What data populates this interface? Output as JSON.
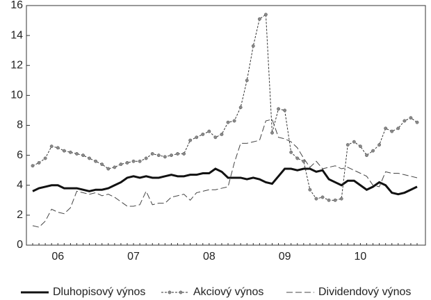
{
  "chart_data": {
    "type": "line",
    "categories": [
      null,
      null,
      null,
      null,
      "06",
      null,
      null,
      null,
      null,
      null,
      null,
      null,
      null,
      null,
      null,
      null,
      "07",
      null,
      null,
      null,
      null,
      null,
      null,
      null,
      null,
      null,
      null,
      null,
      "08",
      null,
      null,
      null,
      null,
      null,
      null,
      null,
      null,
      null,
      null,
      null,
      "09",
      null,
      null,
      null,
      null,
      null,
      null,
      null,
      null,
      null,
      null,
      null,
      "10",
      null,
      null,
      null,
      null,
      null,
      null,
      null,
      null,
      null
    ],
    "ylim": [
      0,
      16
    ],
    "yticks": [
      0,
      2,
      4,
      6,
      8,
      10,
      12,
      14,
      16
    ],
    "grid": false,
    "legend": "bottom",
    "series": [
      {
        "name": "Dluhopisový výnos",
        "color": "#111111",
        "line_style": "thick",
        "values": [
          3.6,
          3.8,
          3.9,
          4.0,
          4.0,
          3.8,
          3.8,
          3.8,
          3.7,
          3.6,
          3.7,
          3.7,
          3.8,
          4.0,
          4.2,
          4.5,
          4.6,
          4.5,
          4.6,
          4.5,
          4.5,
          4.6,
          4.7,
          4.6,
          4.6,
          4.7,
          4.7,
          4.8,
          4.8,
          5.1,
          4.9,
          4.5,
          4.5,
          4.5,
          4.4,
          4.5,
          4.4,
          4.2,
          4.1,
          4.6,
          5.1,
          5.1,
          5.0,
          5.1,
          5.1,
          4.9,
          5.0,
          4.4,
          4.2,
          4.0,
          4.3,
          4.3,
          4.0,
          3.7,
          3.9,
          4.2,
          4.0,
          3.5,
          3.4,
          3.5,
          3.7,
          3.9
        ]
      },
      {
        "name": "Akciový výnos",
        "color": "#333333",
        "line_style": "dotted",
        "marker": "circle",
        "values": [
          5.3,
          5.5,
          5.8,
          6.6,
          6.5,
          6.3,
          6.2,
          6.1,
          6.0,
          5.8,
          5.6,
          5.4,
          5.1,
          5.2,
          5.4,
          5.5,
          5.6,
          5.6,
          5.8,
          6.1,
          6.0,
          5.9,
          6.0,
          6.1,
          6.1,
          7.0,
          7.2,
          7.4,
          7.6,
          7.2,
          7.4,
          8.2,
          8.3,
          9.2,
          11.0,
          13.3,
          15.1,
          15.4,
          7.5,
          9.1,
          9.0,
          6.2,
          5.8,
          5.6,
          3.7,
          3.1,
          3.2,
          3.0,
          3.0,
          3.1,
          6.7,
          6.9,
          6.6,
          6.0,
          6.3,
          6.7,
          7.8,
          7.6,
          7.8,
          8.3,
          8.5,
          8.2
        ]
      },
      {
        "name": "Dividendový výnos",
        "color": "#444444",
        "line_style": "dashed",
        "values": [
          1.3,
          1.2,
          1.6,
          2.4,
          2.2,
          2.1,
          2.5,
          3.6,
          3.5,
          3.4,
          3.5,
          3.3,
          3.4,
          3.2,
          2.9,
          2.6,
          2.6,
          2.7,
          3.6,
          2.7,
          2.8,
          2.8,
          3.2,
          3.3,
          3.4,
          3.0,
          3.5,
          3.6,
          3.7,
          3.7,
          3.8,
          3.9,
          5.5,
          6.8,
          6.8,
          6.9,
          7.0,
          8.3,
          8.4,
          7.2,
          7.1,
          6.9,
          6.5,
          5.8,
          5.2,
          5.6,
          5.1,
          5.2,
          5.3,
          5.1,
          5.2,
          5.0,
          4.8,
          4.6,
          4.0,
          3.9,
          4.9,
          4.8,
          4.8,
          4.7,
          4.6,
          4.5
        ]
      }
    ]
  }
}
